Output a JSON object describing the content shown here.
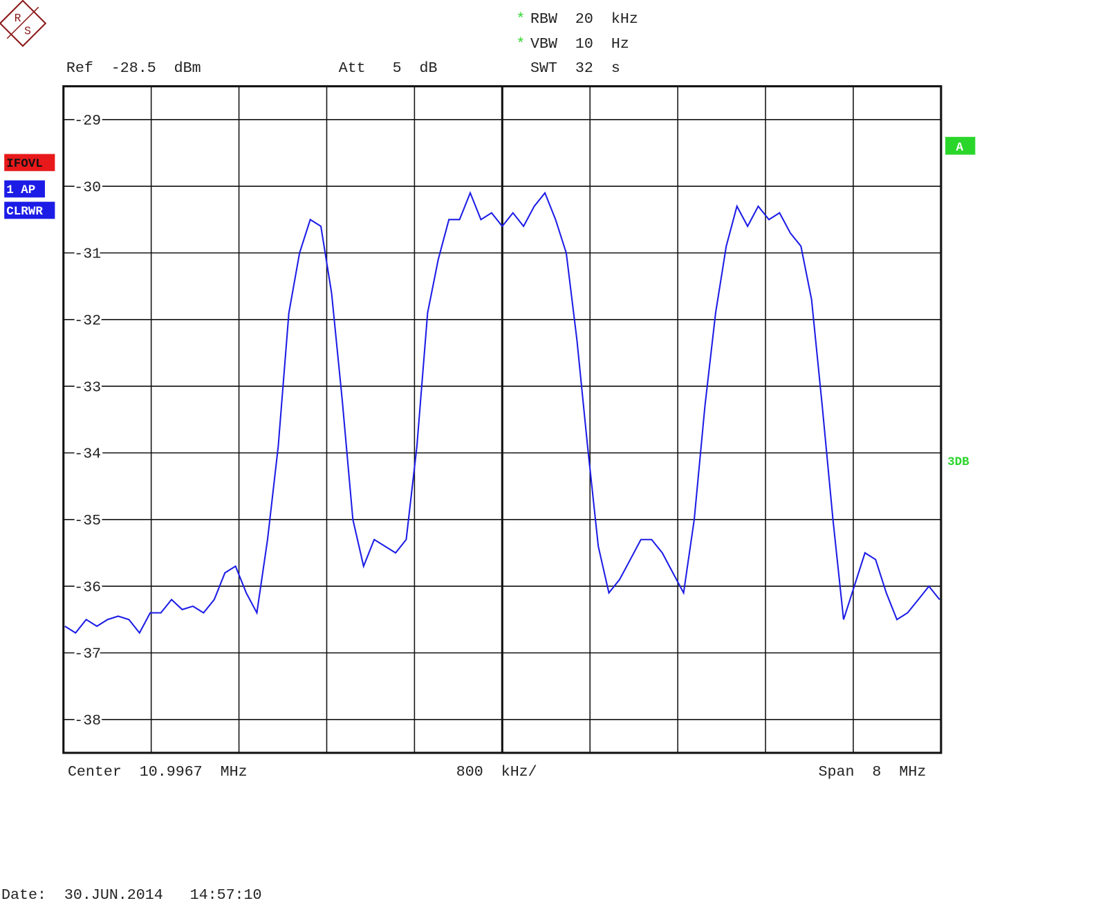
{
  "chart_data": {
    "type": "line",
    "logo": [
      "R",
      "S"
    ],
    "header": {
      "star": "*",
      "rbw": "RBW  20  kHz",
      "vbw": "VBW  10  Hz",
      "swt": "SWT  32  s",
      "ref": "Ref  -28.5  dBm",
      "att": "Att   5  dB"
    },
    "side_labels": {
      "ifovl": "IFOVL",
      "trace": "1 AP",
      "mode": "CLRWR",
      "a": "A",
      "db": "3DB"
    },
    "footer": {
      "center": "Center  10.9967  MHz",
      "div": "800  kHz/",
      "span": "Span  8  MHz",
      "date": "Date:  30.JUN.2014   14:57:10"
    },
    "ylim": [
      -38.5,
      -28.5
    ],
    "yticks": [
      -29,
      -30,
      -31,
      -32,
      -33,
      -34,
      -35,
      -36,
      -37,
      -38
    ],
    "grid": true,
    "series": [
      {
        "color": "#1c1ce6",
        "values": [
          -36.6,
          -36.7,
          -36.5,
          -36.6,
          -36.5,
          -36.45,
          -36.5,
          -36.7,
          -36.4,
          -36.4,
          -36.2,
          -36.35,
          -36.3,
          -36.4,
          -36.2,
          -35.8,
          -35.7,
          -36.1,
          -36.4,
          -35.3,
          -33.9,
          -31.9,
          -31.0,
          -30.5,
          -30.6,
          -31.6,
          -33.2,
          -35.0,
          -35.7,
          -35.3,
          -35.4,
          -35.5,
          -35.3,
          -33.9,
          -31.9,
          -31.1,
          -30.5,
          -30.5,
          -30.1,
          -30.5,
          -30.4,
          -30.6,
          -30.4,
          -30.6,
          -30.3,
          -30.1,
          -30.5,
          -31.0,
          -32.3,
          -33.9,
          -35.4,
          -36.1,
          -35.9,
          -35.6,
          -35.3,
          -35.3,
          -35.5,
          -35.8,
          -36.1,
          -35.0,
          -33.3,
          -31.9,
          -30.9,
          -30.3,
          -30.6,
          -30.3,
          -30.5,
          -30.4,
          -30.7,
          -30.9,
          -31.7,
          -33.3,
          -35.0,
          -36.5,
          -36.0,
          -35.5,
          -35.6,
          -36.1,
          -36.5,
          -36.4,
          -36.2,
          -36.0,
          -36.2
        ]
      }
    ]
  }
}
